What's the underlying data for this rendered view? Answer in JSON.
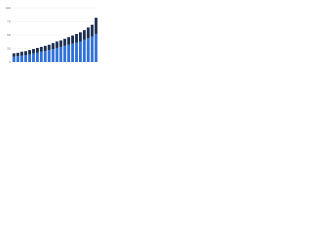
{
  "chart_data": {
    "type": "stacked_bar",
    "categories": [
      null,
      null,
      null,
      null,
      null,
      null,
      null,
      null,
      null,
      null,
      null,
      null,
      null,
      null,
      null,
      null,
      null,
      null,
      null,
      null,
      null,
      null
    ],
    "series": [
      {
        "name": null,
        "color": "#2e6fd8",
        "values": [
          10,
          11,
          12,
          13,
          14,
          16,
          17,
          19,
          20,
          22,
          24,
          26,
          28,
          30,
          32,
          34,
          36,
          38,
          41,
          44,
          47,
          52
        ]
      },
      {
        "name": null,
        "color": "#1b2d4f",
        "values": [
          6,
          6,
          7,
          7,
          8,
          8,
          9,
          9,
          10,
          10,
          11,
          12,
          12,
          13,
          14,
          15,
          16,
          17,
          18,
          20,
          22,
          30
        ]
      }
    ],
    "ylim": [
      0,
      100
    ],
    "yticks": [
      0,
      25,
      50,
      75,
      100
    ],
    "grid": true
  }
}
